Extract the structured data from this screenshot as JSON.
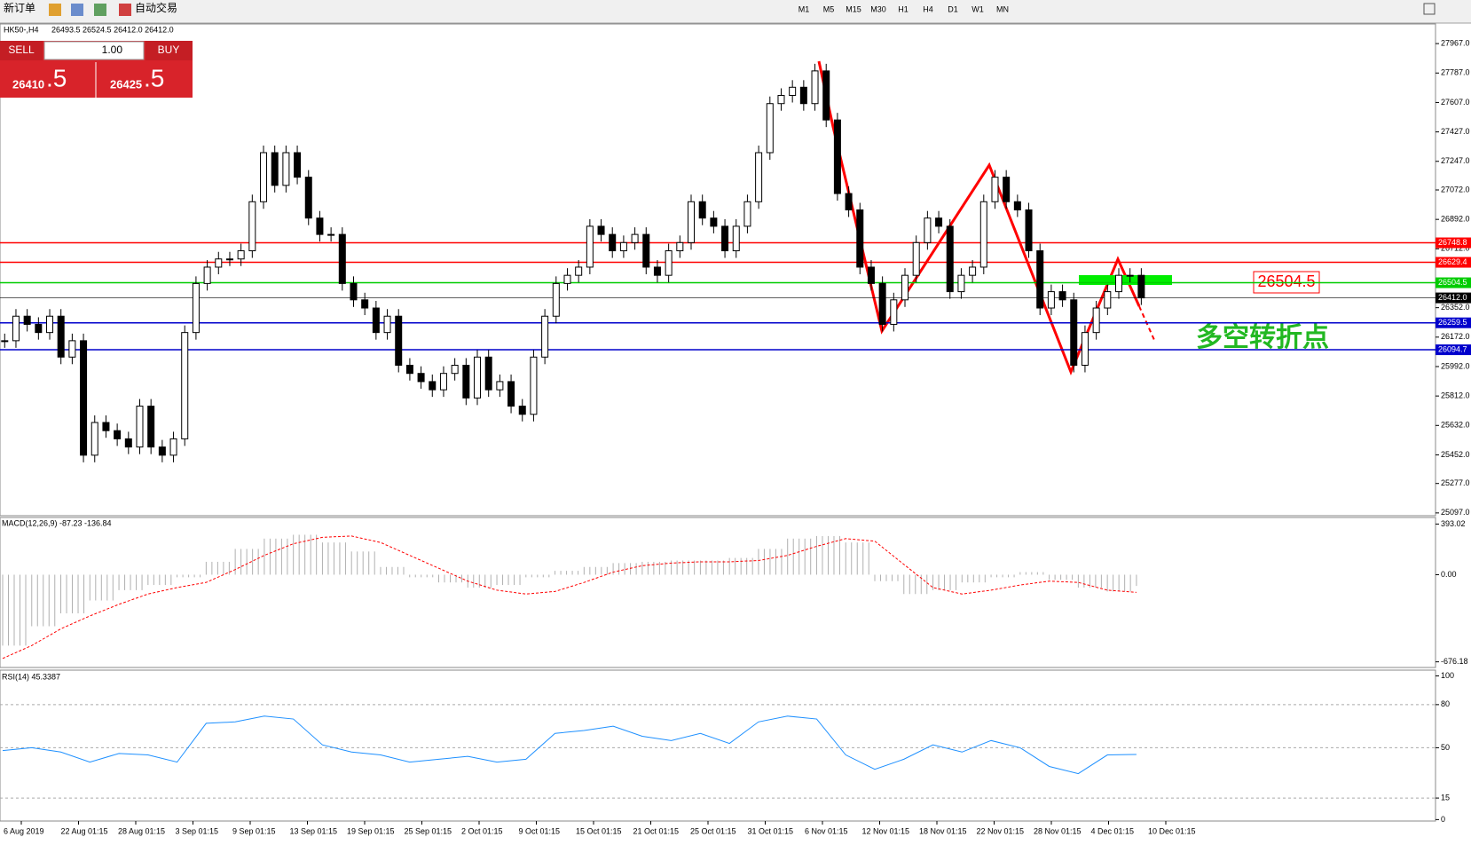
{
  "toolbar": {
    "new_order": "新订单",
    "auto_trading": "自动交易",
    "timeframes": [
      "M1",
      "M5",
      "M15",
      "M30",
      "H1",
      "H4",
      "D1",
      "W1",
      "MN"
    ]
  },
  "trade_panel": {
    "sell": "SELL",
    "buy": "BUY",
    "volume": "1.00",
    "sell_price": "26410",
    "sell_fraction": ".5",
    "buy_price": "26425",
    "buy_fraction": ".5"
  },
  "annotations": {
    "price_box": "26504.5",
    "turning_point": "多空转折点"
  },
  "chart_data": [
    {
      "type": "candlestick",
      "title": "HK50-,H4",
      "header_values": "26493.5 26524.5 26412.0 26412.0",
      "ylim": [
        25080,
        28087
      ],
      "yticks": [
        {
          "value": 27967,
          "label": "27967.0"
        },
        {
          "value": 27787,
          "label": "27787.0"
        },
        {
          "value": 27607,
          "label": "27607.0"
        },
        {
          "value": 27427,
          "label": "27427.0"
        },
        {
          "value": 27247,
          "label": "27247.0"
        },
        {
          "value": 27072,
          "label": "27072.0"
        },
        {
          "value": 26892,
          "label": "26892.0"
        },
        {
          "value": 26712,
          "label": "26712.0"
        },
        {
          "value": 26352,
          "label": "26352.0"
        },
        {
          "value": 26172,
          "label": "26172.0"
        },
        {
          "value": 25992,
          "label": "25992.0"
        },
        {
          "value": 25812,
          "label": "25812.0"
        },
        {
          "value": 25632,
          "label": "25632.0"
        },
        {
          "value": 25452,
          "label": "25452.0"
        },
        {
          "value": 25277,
          "label": "25277.0"
        },
        {
          "value": 25097,
          "label": "25097.0"
        }
      ],
      "levels": [
        {
          "value": 26748.8,
          "color": "#ff0000"
        },
        {
          "value": 26629.4,
          "color": "#ff0000"
        },
        {
          "value": 26504.5,
          "color": "#00cc00"
        },
        {
          "value": 26412,
          "label": "26412.0",
          "color": "#000000"
        },
        {
          "value": 26259.5,
          "color": "#0000cc"
        },
        {
          "value": 26094.7,
          "color": "#0000cc"
        }
      ],
      "x_labels": [
        "6 Aug 2019",
        "22 Aug 01:15",
        "28 Aug 01:15",
        "3 Sep 01:15",
        "9 Sep 01:15",
        "13 Sep 01:15",
        "19 Sep 01:15",
        "25 Sep 01:15",
        "2 Oct 01:15",
        "9 Oct 01:15",
        "15 Oct 01:15",
        "21 Oct 01:15",
        "25 Oct 01:15",
        "31 Oct 01:15",
        "6 Nov 01:15",
        "12 Nov 01:15",
        "18 Nov 01:15",
        "22 Nov 01:15",
        "28 Nov 01:15",
        "4 Dec 01:15",
        "10 Dec 01:15"
      ],
      "closes": [
        26150,
        26300,
        26250,
        26200,
        26300,
        26050,
        26150,
        25450,
        25650,
        25600,
        25550,
        25500,
        25750,
        25500,
        25450,
        25550,
        26200,
        26500,
        26600,
        26650,
        26650,
        26700,
        27000,
        27300,
        27100,
        27300,
        27150,
        26900,
        26800,
        26800,
        26500,
        26400,
        26350,
        26200,
        26300,
        26000,
        25950,
        25900,
        25850,
        25950,
        26000,
        25800,
        26050,
        25850,
        25900,
        25750,
        25700,
        26050,
        26300,
        26500,
        26550,
        26600,
        26850,
        26800,
        26700,
        26750,
        26800,
        26600,
        26550,
        26700,
        26750,
        27000,
        26900,
        26850,
        26700,
        26850,
        27000,
        27300,
        27600,
        27650,
        27700,
        27600,
        27800,
        27500,
        27050,
        26950,
        26600,
        26500,
        26250,
        26400,
        26550,
        26750,
        26900,
        26850,
        26450,
        26550,
        26600,
        27000,
        27150,
        27000,
        26950,
        26700,
        26350,
        26450,
        26400,
        26000,
        26200,
        26350,
        26450,
        26550,
        26550,
        26412
      ]
    },
    {
      "type": "macd",
      "title": "MACD(12,26,9) -87.23 -136.84",
      "ylim": [
        -720,
        444
      ],
      "yticks": [
        {
          "value": 393.02,
          "label": "393.02"
        },
        {
          "value": 0,
          "label": "0.00"
        },
        {
          "value": -676.18,
          "label": "-676.18"
        }
      ],
      "series": [
        {
          "name": "MACD",
          "color": "#b0b0b0",
          "values": [
            -550,
            -400,
            -300,
            -200,
            -120,
            -80,
            -20,
            100,
            200,
            280,
            310,
            250,
            180,
            60,
            -20,
            -60,
            -100,
            -80,
            -20,
            30,
            60,
            90,
            100,
            110,
            110,
            130,
            200,
            280,
            300,
            250,
            -50,
            -150,
            -120,
            -60,
            -20,
            20,
            -40,
            -100,
            -130,
            -87.23
          ]
        },
        {
          "name": "Signal",
          "color": "#ff0000",
          "values": [
            -650,
            -550,
            -420,
            -320,
            -230,
            -150,
            -100,
            -60,
            40,
            150,
            240,
            290,
            300,
            250,
            150,
            50,
            -50,
            -120,
            -150,
            -130,
            -60,
            20,
            70,
            90,
            100,
            100,
            110,
            150,
            220,
            280,
            260,
            80,
            -100,
            -150,
            -120,
            -80,
            -50,
            -60,
            -120,
            -136.84
          ]
        }
      ]
    },
    {
      "type": "line",
      "title": "RSI(14) 45.3387",
      "ylim": [
        -1,
        104
      ],
      "yticks": [
        100,
        80,
        50,
        15,
        0
      ],
      "levels": [
        80,
        50,
        15
      ],
      "series": [
        {
          "name": "RSI",
          "color": "#1e90ff",
          "values": [
            48,
            50,
            47,
            40,
            46,
            45,
            40,
            67,
            68,
            72,
            70,
            52,
            47,
            45,
            40,
            42,
            44,
            40,
            42,
            60,
            62,
            65,
            58,
            55,
            60,
            53,
            68,
            72,
            70,
            45,
            35,
            42,
            52,
            47,
            55,
            50,
            37,
            32,
            45,
            45.3387
          ]
        }
      ]
    }
  ]
}
